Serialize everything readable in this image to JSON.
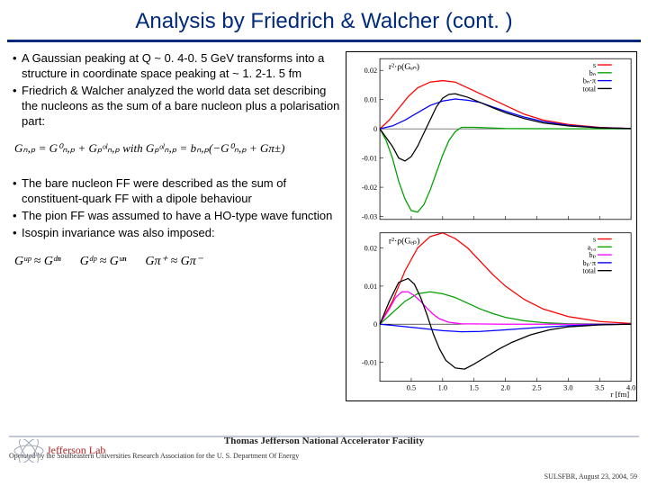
{
  "title": "Analysis by Friedrich & Walcher (cont. )",
  "bullets_top": [
    "A Gaussian peaking at Q ~ 0. 4-0. 5 GeV transforms into a structure in coordinate space peaking at ~ 1. 2-1. 5 fm",
    "Friedrich & Walcher analyzed the world data set describing the nucleons as the sum of a bare nucleon plus a polarisation part:"
  ],
  "equation1": "Gₙ,ₚ = G⁰ₙ,ₚ + Gₚᵒˡₙ,ₚ  with  Gₚᵒˡₙ,ₚ = bₙ,ₚ(−G⁰ₙ,ₚ + Gπ±)",
  "bullets_bottom": [
    "The bare nucleon FF were described as the sum of constituent-quark FF with a dipole behaviour",
    "The pion FF was assumed to have a HO-type wave function",
    "Isospin invariance was also imposed:"
  ],
  "equation2": "Gᵘᵖ ≈ Gᵈⁿ   Gᵈᵖ ≈ Gᵘⁿ   Gπ⁺ ≈ Gπ⁻",
  "chart_top": {
    "title": "r²·ρ(Gₑₙ)",
    "ylim": [
      -0.031,
      0.024
    ],
    "yticks": [
      -0.03,
      -0.02,
      -0.01,
      0,
      0.01,
      0.02
    ],
    "xlim": [
      0,
      4.0
    ],
    "xticks": [
      0.5,
      1.0,
      1.5,
      2.0,
      2.5,
      3.0,
      3.5,
      4.0
    ],
    "xlabel": "r  [fm]",
    "legend": [
      {
        "label": "s",
        "color": "#ff0000"
      },
      {
        "label": "bₙ",
        "color": "#00a000"
      },
      {
        "label": "bₙ·π",
        "color": "#0000ff"
      },
      {
        "label": "total",
        "color": "#000000"
      }
    ],
    "series": [
      {
        "color": "#ff0000",
        "pts": [
          [
            0,
            0
          ],
          [
            0.15,
            0.003
          ],
          [
            0.3,
            0.007
          ],
          [
            0.45,
            0.011
          ],
          [
            0.6,
            0.014
          ],
          [
            0.8,
            0.016
          ],
          [
            1.0,
            0.0165
          ],
          [
            1.2,
            0.016
          ],
          [
            1.4,
            0.014
          ],
          [
            1.6,
            0.012
          ],
          [
            1.8,
            0.01
          ],
          [
            2.0,
            0.008
          ],
          [
            2.3,
            0.005
          ],
          [
            2.6,
            0.003
          ],
          [
            3.0,
            0.0015
          ],
          [
            3.5,
            0.0005
          ],
          [
            4.0,
            0.0001
          ]
        ]
      },
      {
        "color": "#00a000",
        "pts": [
          [
            0,
            0
          ],
          [
            0.1,
            -0.004
          ],
          [
            0.2,
            -0.01
          ],
          [
            0.3,
            -0.018
          ],
          [
            0.4,
            -0.024
          ],
          [
            0.5,
            -0.028
          ],
          [
            0.6,
            -0.0285
          ],
          [
            0.7,
            -0.026
          ],
          [
            0.8,
            -0.021
          ],
          [
            0.9,
            -0.015
          ],
          [
            1.0,
            -0.009
          ],
          [
            1.1,
            -0.004
          ],
          [
            1.2,
            -0.001
          ],
          [
            1.3,
            0.0005
          ],
          [
            1.5,
            0.0005
          ],
          [
            2.0,
            0.0001
          ],
          [
            3.0,
            0
          ],
          [
            4.0,
            0
          ]
        ]
      },
      {
        "color": "#0000ff",
        "pts": [
          [
            0,
            0
          ],
          [
            0.2,
            0.001
          ],
          [
            0.4,
            0.003
          ],
          [
            0.6,
            0.0055
          ],
          [
            0.8,
            0.008
          ],
          [
            1.0,
            0.0095
          ],
          [
            1.2,
            0.0102
          ],
          [
            1.4,
            0.0098
          ],
          [
            1.6,
            0.009
          ],
          [
            1.8,
            0.0075
          ],
          [
            2.0,
            0.006
          ],
          [
            2.3,
            0.004
          ],
          [
            2.6,
            0.0025
          ],
          [
            3.0,
            0.0012
          ],
          [
            3.5,
            0.0004
          ],
          [
            4.0,
            0.0001
          ]
        ]
      },
      {
        "color": "#000000",
        "pts": [
          [
            0,
            0
          ],
          [
            0.2,
            -0.006
          ],
          [
            0.3,
            -0.01
          ],
          [
            0.4,
            -0.011
          ],
          [
            0.5,
            -0.0095
          ],
          [
            0.6,
            -0.006
          ],
          [
            0.7,
            -0.0015
          ],
          [
            0.8,
            0.003
          ],
          [
            0.9,
            0.0075
          ],
          [
            1.0,
            0.0105
          ],
          [
            1.1,
            0.0118
          ],
          [
            1.2,
            0.012
          ],
          [
            1.4,
            0.0108
          ],
          [
            1.6,
            0.009
          ],
          [
            1.8,
            0.0072
          ],
          [
            2.0,
            0.0055
          ],
          [
            2.3,
            0.0035
          ],
          [
            2.6,
            0.002
          ],
          [
            3.0,
            0.001
          ],
          [
            3.5,
            0.0003
          ],
          [
            4.0,
            0.0001
          ]
        ]
      }
    ],
    "grid_color": "#e0e0e0",
    "background_color": "#ffffff"
  },
  "chart_bottom": {
    "title": "r²·ρ(Gₑₚ)",
    "ylim": [
      -0.015,
      0.024
    ],
    "yticks": [
      -0.01,
      0,
      0.01,
      0.02
    ],
    "xlim": [
      0,
      4.0
    ],
    "xticks": [
      0.5,
      1.0,
      1.5,
      2.0,
      2.5,
      3.0,
      3.5,
      4.0
    ],
    "xlabel": "r  [fm]",
    "legend": [
      {
        "label": "s",
        "color": "#ff0000"
      },
      {
        "label": "a₁₀",
        "color": "#00a000"
      },
      {
        "label": "bₚ",
        "color": "#ff00ff"
      },
      {
        "label": "bₚ·π",
        "color": "#0000ff"
      },
      {
        "label": "total",
        "color": "#000000"
      }
    ],
    "series": [
      {
        "color": "#ff0000",
        "pts": [
          [
            0,
            0
          ],
          [
            0.2,
            0.006
          ],
          [
            0.4,
            0.014
          ],
          [
            0.6,
            0.02
          ],
          [
            0.8,
            0.023
          ],
          [
            1.0,
            0.024
          ],
          [
            1.2,
            0.0225
          ],
          [
            1.4,
            0.02
          ],
          [
            1.6,
            0.0165
          ],
          [
            1.8,
            0.013
          ],
          [
            2.0,
            0.01
          ],
          [
            2.3,
            0.0065
          ],
          [
            2.6,
            0.004
          ],
          [
            3.0,
            0.002
          ],
          [
            3.5,
            0.0007
          ],
          [
            4.0,
            0.0002
          ]
        ]
      },
      {
        "color": "#00a000",
        "pts": [
          [
            0,
            0
          ],
          [
            0.2,
            0.003
          ],
          [
            0.4,
            0.006
          ],
          [
            0.6,
            0.008
          ],
          [
            0.8,
            0.0085
          ],
          [
            1.0,
            0.008
          ],
          [
            1.2,
            0.007
          ],
          [
            1.4,
            0.0055
          ],
          [
            1.6,
            0.004
          ],
          [
            1.8,
            0.0028
          ],
          [
            2.0,
            0.0018
          ],
          [
            2.3,
            0.0009
          ],
          [
            2.6,
            0.0004
          ],
          [
            3.0,
            0.0001
          ],
          [
            4.0,
            0
          ]
        ]
      },
      {
        "color": "#ff00ff",
        "pts": [
          [
            0,
            0
          ],
          [
            0.15,
            0.004
          ],
          [
            0.25,
            0.007
          ],
          [
            0.35,
            0.0085
          ],
          [
            0.45,
            0.0085
          ],
          [
            0.55,
            0.0075
          ],
          [
            0.65,
            0.006
          ],
          [
            0.75,
            0.0042
          ],
          [
            0.85,
            0.0026
          ],
          [
            0.95,
            0.0014
          ],
          [
            1.1,
            0.0005
          ],
          [
            1.3,
            0.0001
          ],
          [
            2.0,
            0
          ],
          [
            4.0,
            0
          ]
        ]
      },
      {
        "color": "#0000ff",
        "pts": [
          [
            0,
            0
          ],
          [
            0.2,
            -0.0003
          ],
          [
            0.6,
            -0.001
          ],
          [
            1.0,
            -0.0017
          ],
          [
            1.3,
            -0.002
          ],
          [
            1.6,
            -0.0019
          ],
          [
            2.0,
            -0.0015
          ],
          [
            2.5,
            -0.0009
          ],
          [
            3.0,
            -0.0004
          ],
          [
            3.5,
            -0.0001
          ],
          [
            4.0,
            0
          ]
        ]
      },
      {
        "color": "#000000",
        "pts": [
          [
            0,
            0
          ],
          [
            0.15,
            0.006
          ],
          [
            0.3,
            0.011
          ],
          [
            0.45,
            0.012
          ],
          [
            0.55,
            0.0105
          ],
          [
            0.65,
            0.007
          ],
          [
            0.75,
            0.0025
          ],
          [
            0.85,
            -0.0025
          ],
          [
            0.95,
            -0.0065
          ],
          [
            1.05,
            -0.0095
          ],
          [
            1.2,
            -0.0115
          ],
          [
            1.35,
            -0.0118
          ],
          [
            1.5,
            -0.0105
          ],
          [
            1.7,
            -0.0085
          ],
          [
            1.9,
            -0.0065
          ],
          [
            2.1,
            -0.0048
          ],
          [
            2.4,
            -0.0028
          ],
          [
            2.7,
            -0.0015
          ],
          [
            3.0,
            -0.0007
          ],
          [
            3.5,
            -0.0002
          ],
          [
            4.0,
            0
          ]
        ]
      }
    ],
    "grid_color": "#e0e0e0",
    "background_color": "#ffffff"
  },
  "footer": {
    "facility": "Thomas Jefferson National Accelerator Facility",
    "operated": "Operated by the Southeastern Universities Research Association for the U. S. Department Of Energy",
    "right": "SULSFBR, August 23, 2004, 59"
  }
}
